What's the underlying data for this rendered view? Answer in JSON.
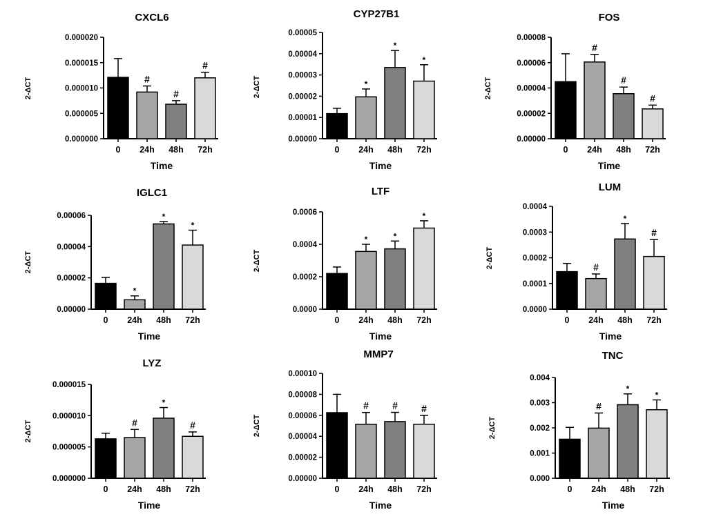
{
  "colors": {
    "0": "#000000",
    "24h": "#a6a6a6",
    "48h": "#808080",
    "72h": "#d9d9d9",
    "stroke": "#000000"
  },
  "chart_data": [
    {
      "type": "bar",
      "title": "CXCL6",
      "xlabel": "Time",
      "ylabel": "2-ΔCT",
      "categories": [
        "0",
        "24h",
        "48h",
        "72h"
      ],
      "values": [
        1.21e-05,
        9.2e-06,
        6.8e-06,
        1.2e-05
      ],
      "errors": [
        3.7e-06,
        1.2e-06,
        7e-07,
        1.1e-06
      ],
      "markers": [
        "",
        "#",
        "#",
        "#"
      ],
      "ylim": [
        0,
        2e-05
      ],
      "yticks": [
        "0.000000",
        "0.000005",
        "0.000010",
        "0.000015",
        "0.000020"
      ]
    },
    {
      "type": "bar",
      "title": "CYP27B1",
      "xlabel": "Time",
      "ylabel": "2-ΔCT",
      "categories": [
        "0",
        "24h",
        "48h",
        "72h"
      ],
      "values": [
        1.18e-05,
        1.97e-05,
        3.35e-05,
        2.71e-05
      ],
      "errors": [
        2.5e-06,
        3.7e-06,
        8e-06,
        7.7e-06
      ],
      "markers": [
        "",
        "*",
        "*",
        "*"
      ],
      "ylim": [
        0,
        5e-05
      ],
      "yticks": [
        "0.00000",
        "0.00001",
        "0.00002",
        "0.00003",
        "0.00004",
        "0.00005"
      ]
    },
    {
      "type": "bar",
      "title": "FOS",
      "xlabel": "Time",
      "ylabel": "2-ΔCT",
      "categories": [
        "0",
        "24h",
        "48h",
        "72h"
      ],
      "values": [
        4.5e-05,
        6.05e-05,
        3.55e-05,
        2.35e-05
      ],
      "errors": [
        2.2e-05,
        6e-06,
        5.2e-06,
        3e-06
      ],
      "markers": [
        "",
        "#",
        "#",
        "#"
      ],
      "ylim": [
        0,
        8e-05
      ],
      "yticks": [
        "0.00000",
        "0.00002",
        "0.00004",
        "0.00006",
        "0.00008"
      ]
    },
    {
      "type": "bar",
      "title": "IGLC1",
      "xlabel": "Time",
      "ylabel": "2-ΔCT",
      "categories": [
        "0",
        "24h",
        "48h",
        "72h"
      ],
      "values": [
        1.65e-05,
        6e-06,
        5.45e-05,
        4.1e-05
      ],
      "errors": [
        3.8e-06,
        2.5e-06,
        1.5e-06,
        9.5e-06
      ],
      "markers": [
        "",
        "*",
        "*",
        "*"
      ],
      "ylim": [
        0,
        6e-05
      ],
      "yticks": [
        "0.00000",
        "0.00002",
        "0.00004",
        "0.00006"
      ]
    },
    {
      "type": "bar",
      "title": "LTF",
      "xlabel": "Time",
      "ylabel": "2-ΔCT",
      "categories": [
        "0",
        "24h",
        "48h",
        "72h"
      ],
      "values": [
        0.00022,
        0.000356,
        0.000372,
        0.0005
      ],
      "errors": [
        4e-05,
        4.4e-05,
        4.8e-05,
        4.5e-05
      ],
      "markers": [
        "",
        "*",
        "*",
        "*"
      ],
      "ylim": [
        0,
        0.0006
      ],
      "yticks": [
        "0.0000",
        "0.0002",
        "0.0004",
        "0.0006"
      ]
    },
    {
      "type": "bar",
      "title": "LUM",
      "xlabel": "Time",
      "ylabel": "2-ΔCT",
      "categories": [
        "0",
        "24h",
        "48h",
        "72h"
      ],
      "values": [
        0.000146,
        0.000119,
        0.000273,
        0.000205
      ],
      "errors": [
        3.2e-05,
        1.8e-05,
        6e-05,
        6.6e-05
      ],
      "markers": [
        "",
        "#",
        "*",
        "#"
      ],
      "ylim": [
        0,
        0.0004
      ],
      "yticks": [
        "0.0000",
        "0.0001",
        "0.0002",
        "0.0003",
        "0.0004"
      ]
    },
    {
      "type": "bar",
      "title": "LYZ",
      "xlabel": "Time",
      "ylabel": "2-ΔCT",
      "categories": [
        "0",
        "24h",
        "48h",
        "72h"
      ],
      "values": [
        6.3e-06,
        6.5e-06,
        9.6e-06,
        6.7e-06
      ],
      "errors": [
        9e-07,
        1.3e-06,
        1.7e-06,
        7e-07
      ],
      "markers": [
        "",
        "#",
        "*",
        "#"
      ],
      "ylim": [
        0,
        1.5e-05
      ],
      "yticks": [
        "0.000000",
        "0.000005",
        "0.000010",
        "0.000015"
      ]
    },
    {
      "type": "bar",
      "title": "MMP7",
      "xlabel": "Time",
      "ylabel": "2-ΔCT",
      "categories": [
        "0",
        "24h",
        "48h",
        "72h"
      ],
      "values": [
        6.25e-05,
        5.15e-05,
        5.4e-05,
        5.15e-05
      ],
      "errors": [
        1.75e-05,
        1.12e-05,
        8.8e-06,
        8.5e-06
      ],
      "markers": [
        "",
        "#",
        "#",
        "#"
      ],
      "ylim": [
        0,
        0.0001
      ],
      "yticks": [
        "0.00000",
        "0.00002",
        "0.00004",
        "0.00006",
        "0.00008",
        "0.00010"
      ]
    },
    {
      "type": "bar",
      "title": "TNC",
      "xlabel": "Time",
      "ylabel": "2-ΔCT",
      "categories": [
        "0",
        "24h",
        "48h",
        "72h"
      ],
      "values": [
        0.00155,
        0.00199,
        0.00292,
        0.00272
      ],
      "errors": [
        0.00047,
        0.0006,
        0.00043,
        0.00039
      ],
      "markers": [
        "",
        "#",
        "*",
        "*"
      ],
      "ylim": [
        0,
        0.004
      ],
      "yticks": [
        "0.000",
        "0.001",
        "0.002",
        "0.003",
        "0.004"
      ]
    }
  ]
}
